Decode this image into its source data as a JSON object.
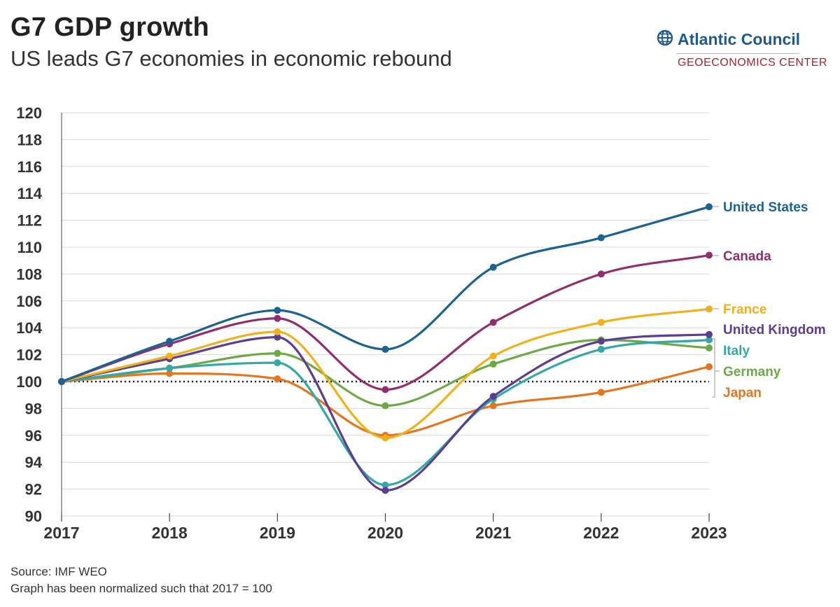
{
  "title": "G7 GDP growth",
  "subtitle": "US leads G7 economies in economic rebound",
  "logo": {
    "brand": "Atlantic Council",
    "sub": "GEOECONOMICS CENTER",
    "brand_color": "#1e5a8c",
    "sub_color": "#a0272e"
  },
  "footer": {
    "source": "Source: IMF WEO",
    "note": "Graph has been normalized such that 2017 = 100"
  },
  "chart_data": {
    "type": "line",
    "x": [
      "2017",
      "2018",
      "2019",
      "2020",
      "2021",
      "2022",
      "2023"
    ],
    "ylim": [
      90,
      120
    ],
    "yticks": [
      90,
      92,
      94,
      96,
      98,
      100,
      102,
      104,
      106,
      108,
      110,
      112,
      114,
      116,
      118,
      120
    ],
    "grid": true,
    "reference_line": 100,
    "legend": "direct labels at right end",
    "series": [
      {
        "name": "United States",
        "color": "#1c6391",
        "values": [
          100,
          103.0,
          105.3,
          102.4,
          108.5,
          110.7,
          113.0
        ]
      },
      {
        "name": "Canada",
        "color": "#8f2f6e",
        "values": [
          100,
          102.8,
          104.7,
          99.4,
          104.4,
          108.0,
          109.4
        ]
      },
      {
        "name": "France",
        "color": "#efb11d",
        "values": [
          100,
          101.9,
          103.7,
          95.8,
          101.9,
          104.4,
          105.4
        ]
      },
      {
        "name": "United Kingdom",
        "color": "#5c3d91",
        "values": [
          100,
          101.7,
          103.3,
          91.9,
          98.9,
          103.0,
          103.5
        ]
      },
      {
        "name": "Italy",
        "color": "#34a8a6",
        "values": [
          100,
          101.0,
          101.4,
          92.3,
          98.7,
          102.4,
          103.1
        ]
      },
      {
        "name": "Germany",
        "color": "#6daa45",
        "values": [
          100,
          101.0,
          102.1,
          98.2,
          101.3,
          103.1,
          102.5
        ]
      },
      {
        "name": "Japan",
        "color": "#e5761f",
        "values": [
          100,
          100.6,
          100.2,
          96.0,
          98.2,
          99.2,
          101.1
        ]
      }
    ],
    "labels": [
      "United States",
      "Canada",
      "France",
      "United Kingdom",
      "Italy",
      "Germany",
      "Japan"
    ]
  }
}
